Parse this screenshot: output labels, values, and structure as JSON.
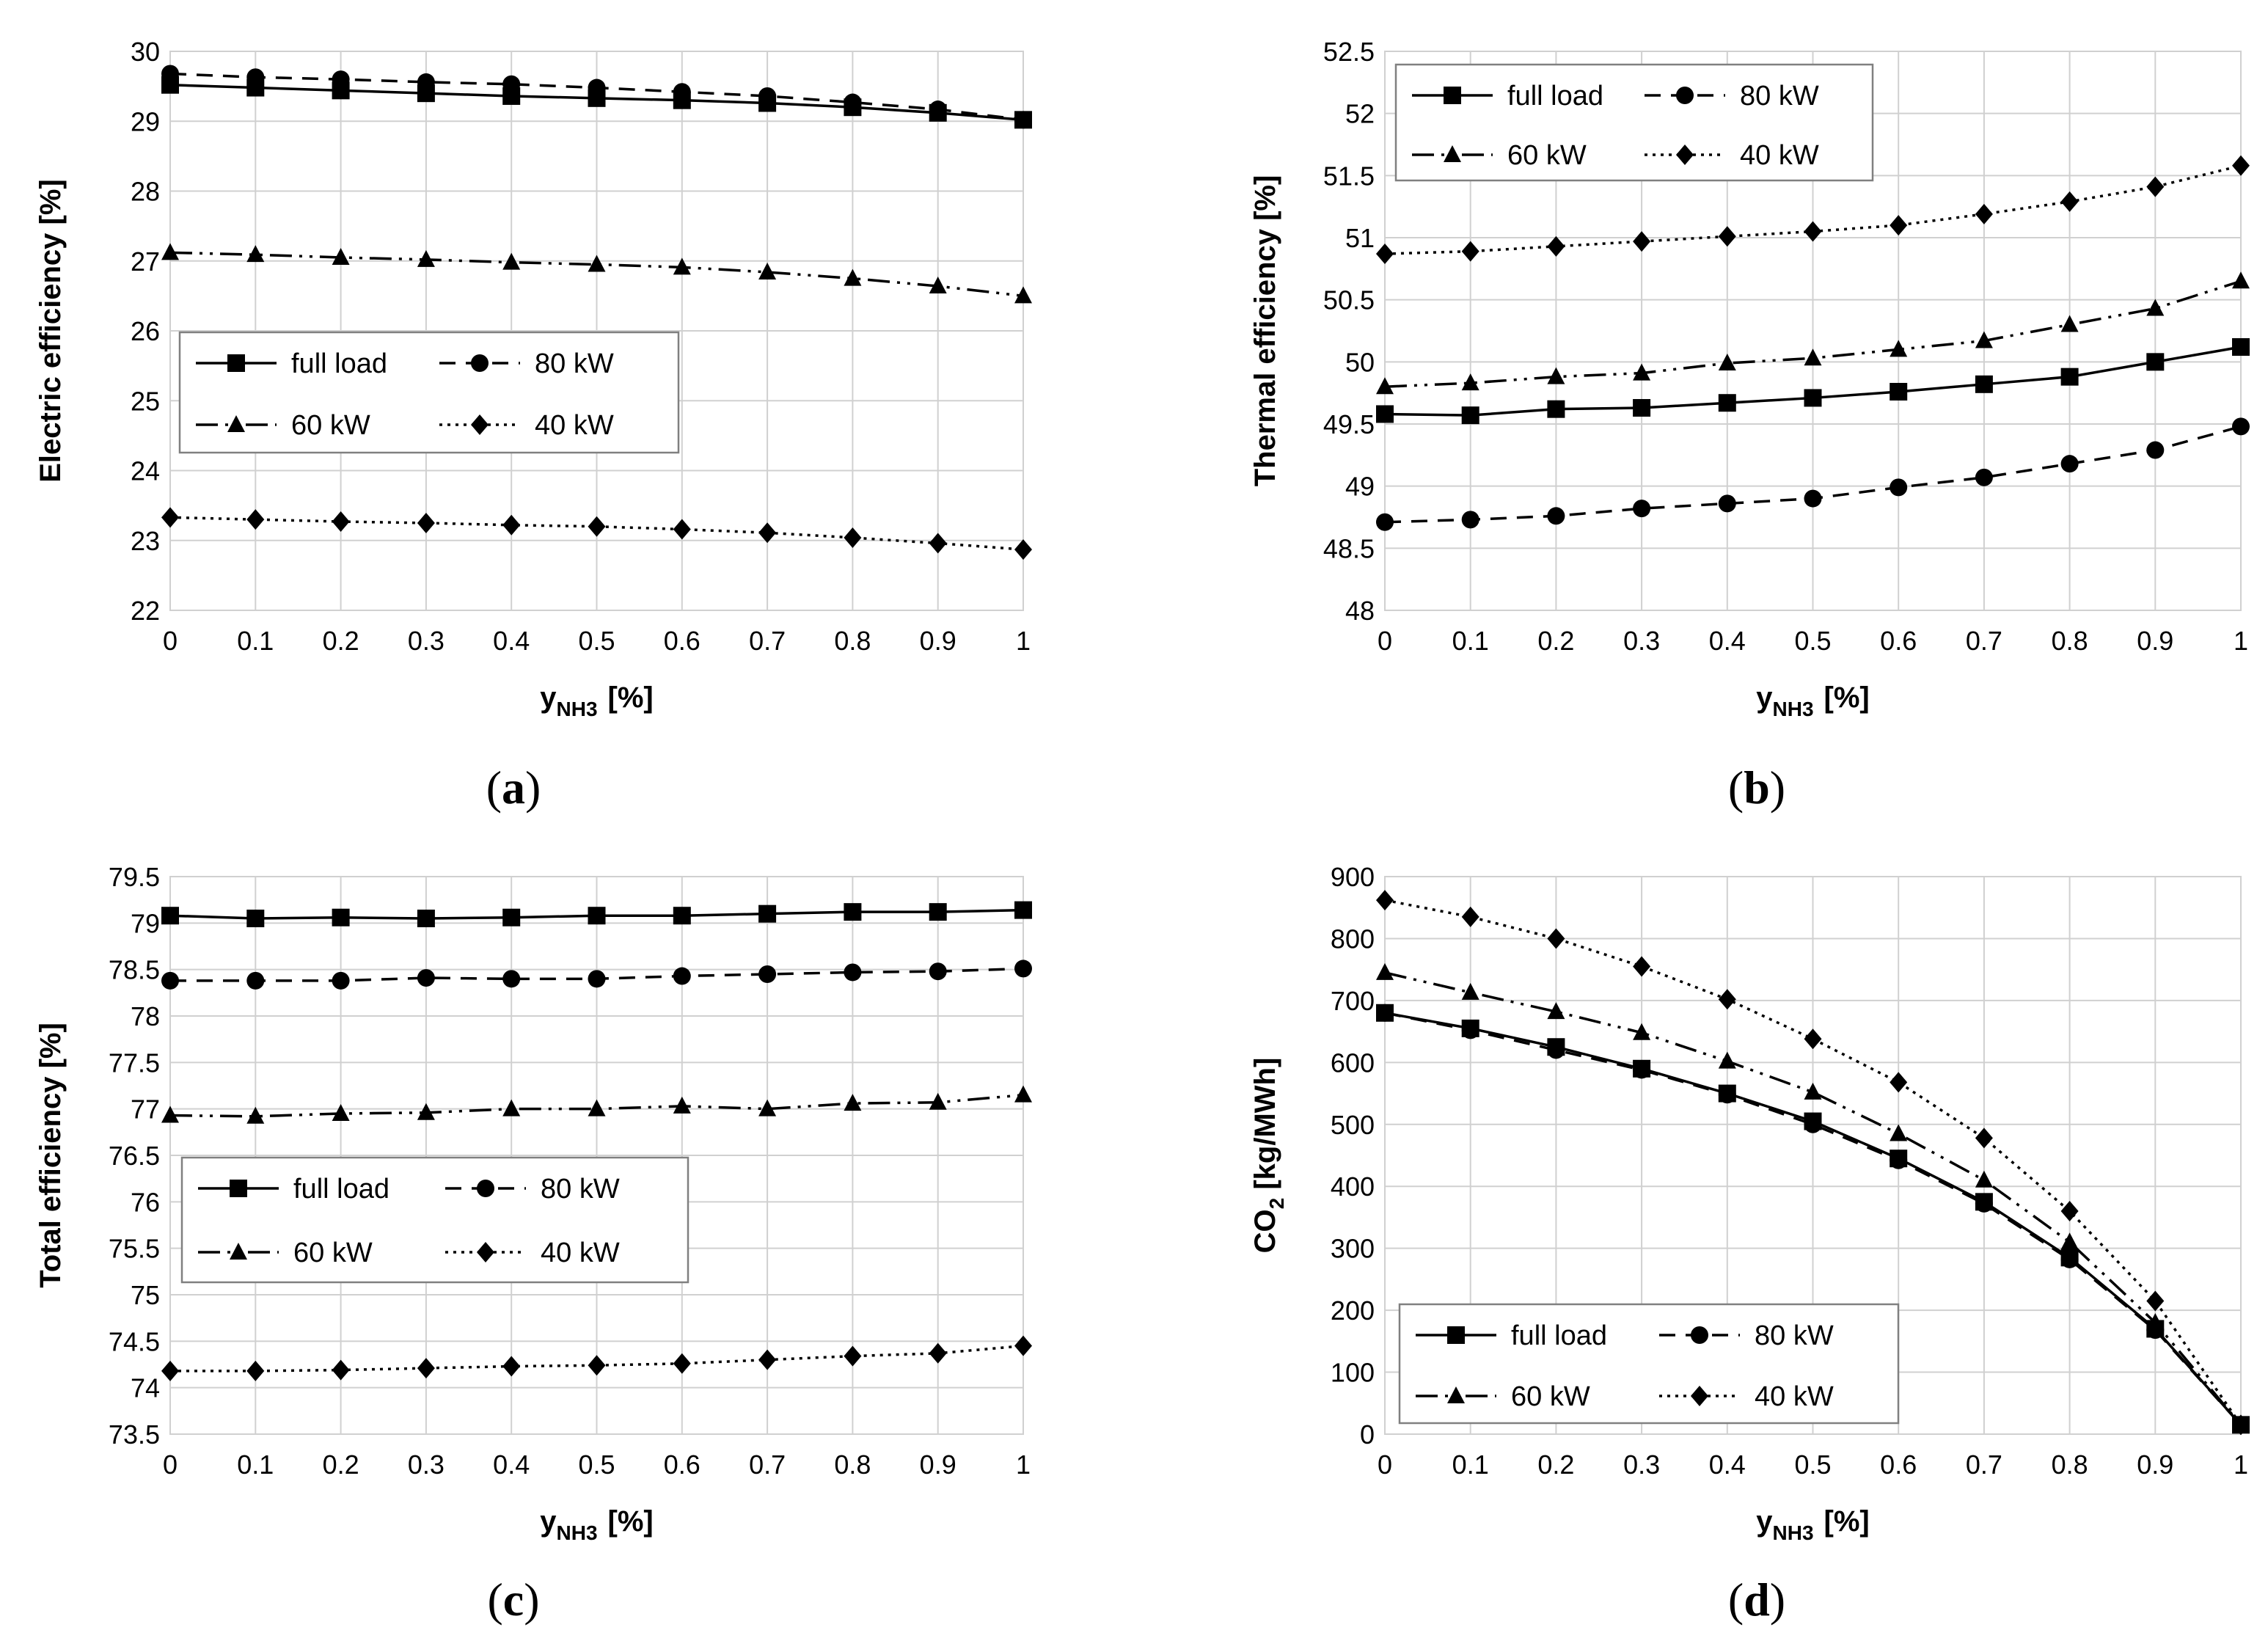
{
  "chart_data": [
    {
      "type": "line",
      "caption": "(a)",
      "caption_parts": [
        "(",
        "a",
        ")"
      ],
      "ylabel": "Electric efficiency [%]",
      "xlabel_main": "y",
      "xlabel_sub": "NH3",
      "xlabel_unit": "[%]",
      "x": [
        0,
        0.1,
        0.2,
        0.3,
        0.4,
        0.5,
        0.6,
        0.7,
        0.8,
        0.9,
        1
      ],
      "x_tick_labels": [
        "0",
        "0.1",
        "0.2",
        "0.3",
        "0.4",
        "0.5",
        "0.6",
        "0.7",
        "0.8",
        "0.9",
        "1"
      ],
      "ylim": [
        22,
        30
      ],
      "y_ticks": [
        22,
        23,
        24,
        25,
        26,
        27,
        28,
        29,
        30
      ],
      "y_tick_labels": [
        "22",
        "23",
        "24",
        "25",
        "26",
        "27",
        "28",
        "29",
        "30"
      ],
      "legend_position": "lower-left",
      "series": [
        {
          "name": "full load",
          "values": [
            29.52,
            29.48,
            29.44,
            29.4,
            29.36,
            29.33,
            29.3,
            29.26,
            29.2,
            29.12,
            29.02
          ]
        },
        {
          "name": "80 kW",
          "values": [
            29.68,
            29.63,
            29.6,
            29.56,
            29.53,
            29.48,
            29.42,
            29.36,
            29.27,
            29.17,
            29.02
          ]
        },
        {
          "name": "60 kW",
          "values": [
            27.12,
            27.09,
            27.05,
            27.02,
            26.98,
            26.95,
            26.91,
            26.84,
            26.75,
            26.64,
            26.5
          ]
        },
        {
          "name": "40 kW",
          "values": [
            23.33,
            23.3,
            23.27,
            23.25,
            23.22,
            23.2,
            23.16,
            23.11,
            23.04,
            22.96,
            22.87
          ]
        }
      ]
    },
    {
      "type": "line",
      "caption": "(b)",
      "caption_parts": [
        "(",
        "b",
        ")"
      ],
      "ylabel": "Thermal efficiency [%]",
      "xlabel_main": "y",
      "xlabel_sub": "NH3",
      "xlabel_unit": "[%]",
      "x": [
        0,
        0.1,
        0.2,
        0.3,
        0.4,
        0.5,
        0.6,
        0.7,
        0.8,
        0.9,
        1
      ],
      "x_tick_labels": [
        "0",
        "0.1",
        "0.2",
        "0.3",
        "0.4",
        "0.5",
        "0.6",
        "0.7",
        "0.8",
        "0.9",
        "1"
      ],
      "ylim": [
        48,
        52.5
      ],
      "y_ticks": [
        48,
        48.5,
        49,
        49.5,
        50,
        50.5,
        51,
        51.5,
        52,
        52.5
      ],
      "y_tick_labels": [
        "48",
        "48.5",
        "49",
        "49.5",
        "50",
        "50.5",
        "51",
        "51.5",
        "52",
        "52.5"
      ],
      "legend_position": "top-left",
      "series": [
        {
          "name": "full load",
          "values": [
            49.58,
            49.57,
            49.62,
            49.63,
            49.67,
            49.71,
            49.76,
            49.82,
            49.88,
            50.0,
            50.12
          ]
        },
        {
          "name": "80 kW",
          "values": [
            48.71,
            48.73,
            48.76,
            48.82,
            48.86,
            48.9,
            48.99,
            49.07,
            49.18,
            49.29,
            49.48
          ]
        },
        {
          "name": "60 kW",
          "values": [
            49.8,
            49.83,
            49.88,
            49.91,
            49.99,
            50.03,
            50.1,
            50.17,
            50.3,
            50.43,
            50.65
          ]
        },
        {
          "name": "40 kW",
          "values": [
            50.87,
            50.89,
            50.93,
            50.97,
            51.01,
            51.05,
            51.1,
            51.19,
            51.29,
            51.41,
            51.58
          ]
        }
      ]
    },
    {
      "type": "line",
      "caption": "(c)",
      "caption_parts": [
        "(",
        "c",
        ")"
      ],
      "ylabel": "Total efficiency [%]",
      "xlabel_main": "y",
      "xlabel_sub": "NH3",
      "xlabel_unit": "[%]",
      "x": [
        0,
        0.1,
        0.2,
        0.3,
        0.4,
        0.5,
        0.6,
        0.7,
        0.8,
        0.9,
        1
      ],
      "x_tick_labels": [
        "0",
        "0.1",
        "0.2",
        "0.3",
        "0.4",
        "0.5",
        "0.6",
        "0.7",
        "0.8",
        "0.9",
        "1"
      ],
      "ylim": [
        73.5,
        79.5
      ],
      "y_ticks": [
        73.5,
        74,
        74.5,
        75,
        75.5,
        76,
        76.5,
        77,
        77.5,
        78,
        78.5,
        79,
        79.5
      ],
      "y_tick_labels": [
        "73.5",
        "74",
        "74.5",
        "75",
        "75.5",
        "76",
        "76.5",
        "77",
        "77.5",
        "78",
        "78.5",
        "79",
        "79.5"
      ],
      "legend_position": "center-left",
      "series": [
        {
          "name": "full load",
          "values": [
            79.08,
            79.05,
            79.06,
            79.05,
            79.06,
            79.08,
            79.08,
            79.1,
            79.12,
            79.12,
            79.14
          ]
        },
        {
          "name": "80 kW",
          "values": [
            78.38,
            78.38,
            78.38,
            78.41,
            78.4,
            78.4,
            78.43,
            78.45,
            78.47,
            78.48,
            78.51
          ]
        },
        {
          "name": "60 kW",
          "values": [
            76.93,
            76.92,
            76.95,
            76.96,
            77.0,
            77.0,
            77.03,
            77.0,
            77.06,
            77.07,
            77.15
          ]
        },
        {
          "name": "40 kW",
          "values": [
            74.18,
            74.18,
            74.19,
            74.21,
            74.23,
            74.24,
            74.26,
            74.3,
            74.34,
            74.37,
            74.45
          ]
        }
      ]
    },
    {
      "type": "line",
      "caption": "(d)",
      "caption_parts": [
        "(",
        "d",
        ")"
      ],
      "ylabel_main": "CO",
      "ylabel_sub": "2",
      "ylabel_unit": " [kg/MWh]",
      "xlabel_main": "y",
      "xlabel_sub": "NH3",
      "xlabel_unit": "[%]",
      "x": [
        0,
        0.1,
        0.2,
        0.3,
        0.4,
        0.5,
        0.6,
        0.7,
        0.8,
        0.9,
        1
      ],
      "x_tick_labels": [
        "0",
        "0.1",
        "0.2",
        "0.3",
        "0.4",
        "0.5",
        "0.6",
        "0.7",
        "0.8",
        "0.9",
        "1"
      ],
      "ylim": [
        0,
        900
      ],
      "y_ticks": [
        0,
        100,
        200,
        300,
        400,
        500,
        600,
        700,
        800,
        900
      ],
      "y_tick_labels": [
        "0",
        "100",
        "200",
        "300",
        "400",
        "500",
        "600",
        "700",
        "800",
        "900"
      ],
      "legend_position": "bottom-left",
      "series": [
        {
          "name": "full load",
          "values": [
            680,
            655,
            625,
            590,
            550,
            505,
            445,
            375,
            285,
            170,
            15
          ]
        },
        {
          "name": "80 kW",
          "values": [
            680,
            652,
            620,
            588,
            548,
            500,
            442,
            372,
            282,
            168,
            15
          ]
        },
        {
          "name": "60 kW",
          "values": [
            745,
            713,
            682,
            648,
            602,
            552,
            485,
            410,
            310,
            180,
            15
          ]
        },
        {
          "name": "40 kW",
          "values": [
            862,
            835,
            800,
            755,
            702,
            638,
            568,
            478,
            360,
            215,
            15
          ]
        }
      ]
    }
  ]
}
